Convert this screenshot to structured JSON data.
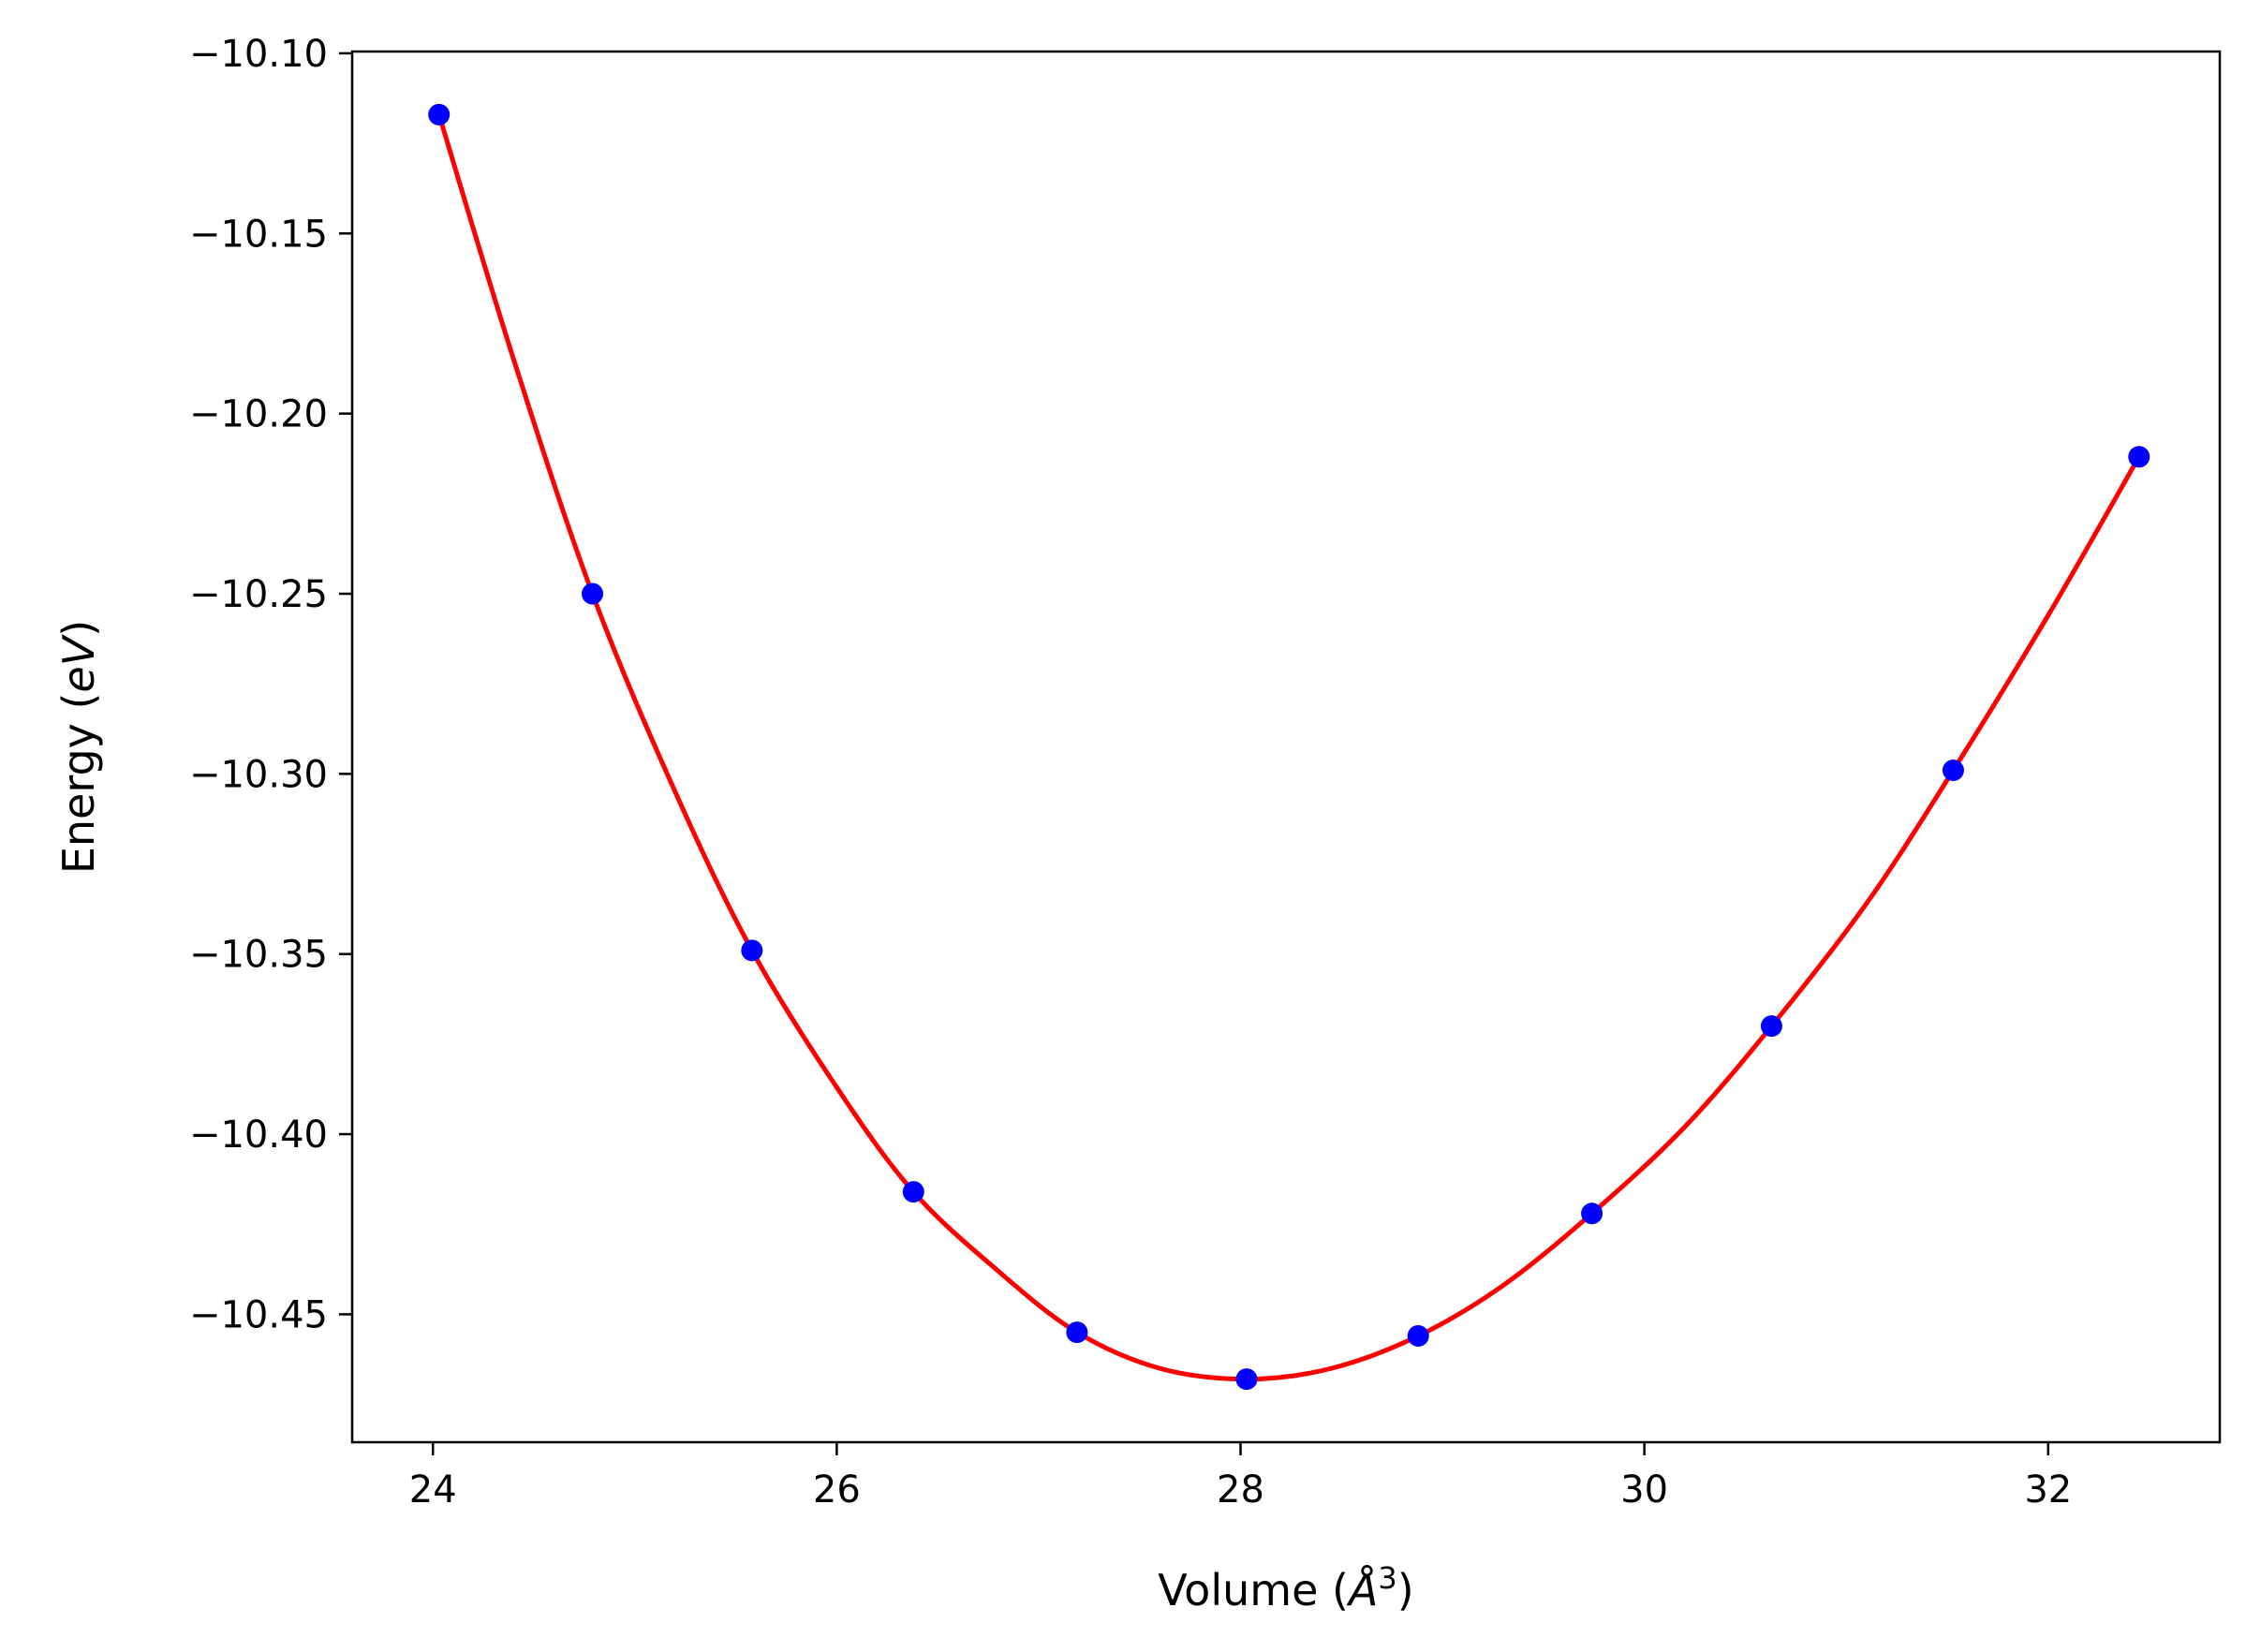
{
  "chart_data": {
    "type": "scatter",
    "title": "",
    "xlabel_parts": {
      "prefix": "Volume (",
      "unit_base": "Å",
      "unit_exp": "3",
      "suffix": ")"
    },
    "ylabel_parts": {
      "prefix": "Energy (",
      "unit": "eV",
      "suffix": ")"
    },
    "xlim": [
      23.6,
      32.85
    ],
    "ylim": [
      -10.4855,
      -10.0995
    ],
    "xticks": [
      24,
      26,
      28,
      30,
      32
    ],
    "xtick_labels": [
      "24",
      "26",
      "28",
      "30",
      "32"
    ],
    "yticks": [
      -10.1,
      -10.15,
      -10.2,
      -10.25,
      -10.3,
      -10.35,
      -10.4,
      -10.45
    ],
    "ytick_labels": [
      "−10.10",
      "−10.15",
      "−10.20",
      "−10.25",
      "−10.30",
      "−10.35",
      "−10.40",
      "−10.45"
    ],
    "grid": false,
    "series": [
      {
        "kind": "points",
        "color": "#0000ff",
        "x": [
          24.03,
          24.79,
          25.58,
          26.38,
          27.19,
          28.03,
          28.88,
          29.74,
          30.63,
          31.53,
          32.45
        ],
        "y": [
          -10.117,
          -10.25,
          -10.349,
          -10.416,
          -10.455,
          -10.468,
          -10.456,
          -10.422,
          -10.37,
          -10.299,
          -10.212
        ]
      },
      {
        "kind": "fit-curve",
        "color": "#ff0000",
        "x": [
          24.03,
          24.4,
          24.79,
          25.2,
          25.58,
          26.0,
          26.38,
          26.8,
          27.19,
          27.6,
          28.03,
          28.45,
          28.88,
          29.3,
          29.74,
          30.2,
          30.63,
          31.1,
          31.53,
          32.0,
          32.45
        ],
        "y": [
          -10.117,
          -10.185,
          -10.25,
          -10.305,
          -10.349,
          -10.387,
          -10.416,
          -10.438,
          -10.455,
          -10.465,
          -10.468,
          -10.465,
          -10.456,
          -10.442,
          -10.422,
          -10.398,
          -10.37,
          -10.336,
          -10.299,
          -10.256,
          -10.212
        ]
      }
    ]
  }
}
